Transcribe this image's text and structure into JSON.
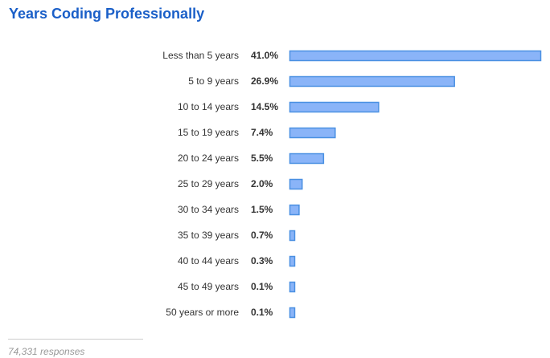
{
  "chart_data": {
    "type": "bar",
    "orientation": "horizontal",
    "title": "Years Coding Professionally",
    "categories": [
      "Less than 5 years",
      "5 to 9 years",
      "10 to 14 years",
      "15 to 19 years",
      "20 to 24 years",
      "25 to 29 years",
      "30 to 34 years",
      "35 to 39 years",
      "40 to 44 years",
      "45 to 49 years",
      "50 years or more"
    ],
    "values": [
      41.0,
      26.9,
      14.5,
      7.4,
      5.5,
      2.0,
      1.5,
      0.7,
      0.3,
      0.1,
      0.1
    ],
    "value_labels": [
      "41.0%",
      "26.9%",
      "14.5%",
      "7.4%",
      "5.5%",
      "2.0%",
      "1.5%",
      "0.7%",
      "0.3%",
      "0.1%",
      "0.1%"
    ],
    "xlim": [
      0,
      41.0
    ],
    "grid": false,
    "legend": "none",
    "colors": {
      "bar_fill": "#8ab4f8",
      "bar_stroke": "#4a90e2",
      "title": "#1a5fc8",
      "label": "#333333",
      "value": "#333333"
    }
  },
  "footer": {
    "responses": "74,331 responses"
  }
}
